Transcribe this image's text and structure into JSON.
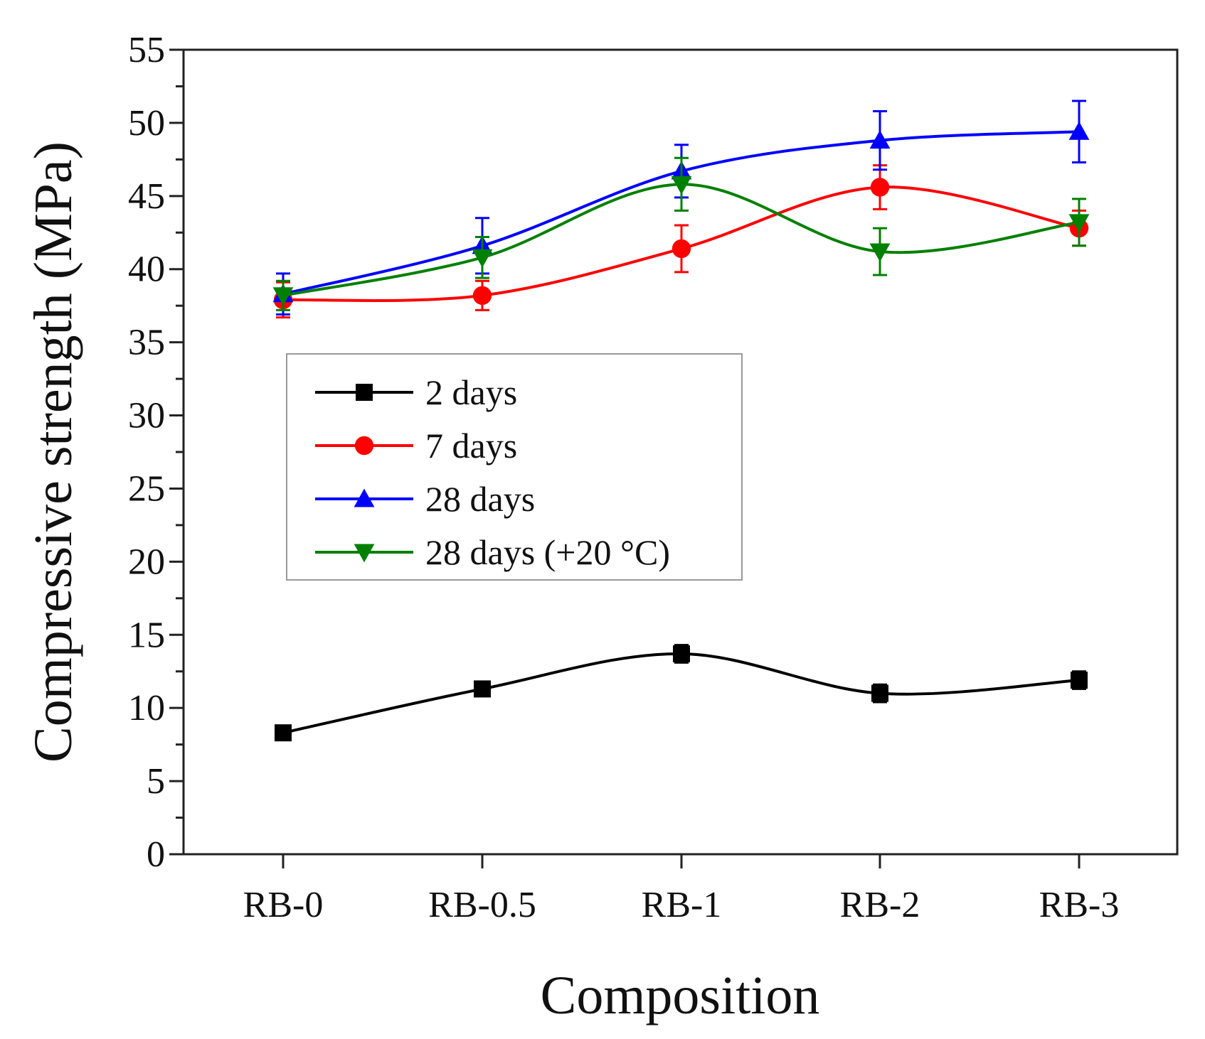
{
  "chart_data": {
    "type": "line",
    "title": "",
    "xlabel": "Composition",
    "ylabel": "Compressive strength (MPa)",
    "categories": [
      "RB-0",
      "RB-0.5",
      "RB-1",
      "RB-2",
      "RB-3"
    ],
    "ylim": [
      0,
      55
    ],
    "yticks": [
      0,
      5,
      10,
      15,
      20,
      25,
      30,
      35,
      40,
      45,
      50,
      55
    ],
    "grid": false,
    "legend_position": "center-left",
    "series": [
      {
        "name": "2 days",
        "color": "#000000",
        "marker": "square",
        "values": [
          8.3,
          11.3,
          13.7,
          11.0,
          11.9
        ],
        "errors": [
          0.4,
          0.4,
          0.6,
          0.6,
          0.6
        ]
      },
      {
        "name": "7 days",
        "color": "#ff0000",
        "marker": "circle",
        "values": [
          37.9,
          38.2,
          41.4,
          45.6,
          42.8
        ],
        "errors": [
          1.2,
          1.0,
          1.6,
          1.5,
          1.2
        ]
      },
      {
        "name": "28 days",
        "color": "#0000ff",
        "marker": "triangle-up",
        "values": [
          38.3,
          41.6,
          46.7,
          48.8,
          49.4
        ],
        "errors": [
          1.4,
          1.9,
          1.8,
          2.0,
          2.1
        ]
      },
      {
        "name": "28 days (+20 °C)",
        "color": "#008000",
        "marker": "triangle-down",
        "values": [
          38.2,
          40.8,
          45.8,
          41.2,
          43.2
        ],
        "errors": [
          1.0,
          1.4,
          1.8,
          1.6,
          1.6
        ]
      }
    ]
  }
}
